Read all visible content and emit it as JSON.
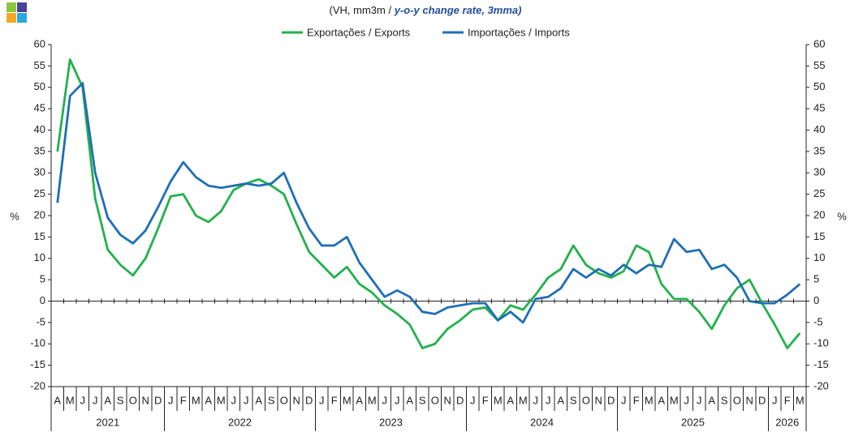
{
  "chart_data": {
    "type": "line",
    "title": "(VH, mm3m  /",
    "subtitle": "y-o-y change rate, 3mma)",
    "ylabel": "%",
    "y2label": "%",
    "legend": "top",
    "categories": [
      "A",
      "M",
      "J",
      "J",
      "A",
      "S",
      "O",
      "N",
      "D",
      "J",
      "F",
      "M",
      "A",
      "M",
      "J",
      "J",
      "A",
      "S",
      "O",
      "N",
      "D",
      "J",
      "F",
      "M",
      "A",
      "M",
      "J",
      "J",
      "A",
      "S",
      "O",
      "N",
      "D",
      "J",
      "F",
      "M",
      "A",
      "M",
      "J",
      "J",
      "A",
      "S",
      "O",
      "N",
      "D",
      "J",
      "F",
      "M",
      "A",
      "M",
      "J",
      "J",
      "A",
      "S",
      "O",
      "N",
      "D",
      "J",
      "F",
      "M"
    ],
    "years": [
      "2021",
      "2022",
      "2023",
      "2024",
      "2025",
      "2026"
    ],
    "series": [
      {
        "name": "Exportações / Exports",
        "color": "#22b14c",
        "values": [
          35,
          56.5,
          50,
          24,
          12,
          8.5,
          6,
          10,
          17,
          24.5,
          25,
          20,
          18.5,
          21,
          26,
          27.5,
          28.5,
          27,
          25,
          18,
          11.5,
          8.5,
          5.5,
          8,
          4,
          2,
          -1,
          -3,
          -5.5,
          -11,
          -10,
          -6.5,
          -4.5,
          -2,
          -1.5,
          -4.5,
          -1,
          -2,
          1.5,
          5.5,
          7.5,
          13,
          8.5,
          6.5,
          5.5,
          7,
          13,
          11.5,
          4,
          0.5,
          0.5,
          -2.5,
          -6.5,
          -1,
          3,
          5,
          -0.5,
          -5.5,
          -11,
          -7.5
        ]
      },
      {
        "name": "Importações / Imports",
        "color": "#1f6fb5",
        "values": [
          23,
          48,
          51,
          30,
          19.5,
          15.5,
          13.5,
          16.5,
          22,
          28,
          32.5,
          29,
          27,
          26.5,
          27,
          27.5,
          27,
          27.5,
          30,
          23,
          17,
          13,
          13,
          15,
          9,
          5,
          1,
          2.5,
          1,
          -2.5,
          -3,
          -1.5,
          -1,
          -0.5,
          -0.5,
          -4.5,
          -2.5,
          -5,
          0.5,
          1,
          3,
          7.5,
          5.5,
          7.5,
          6,
          8.5,
          6.5,
          8.5,
          8,
          14.5,
          11.5,
          12,
          7.5,
          8.5,
          5.5,
          0,
          -0.5,
          -0.5,
          1.5,
          4
        ]
      }
    ],
    "ylim": [
      -20,
      60
    ],
    "yticks": [
      -20,
      -15,
      -10,
      -5,
      0,
      5,
      10,
      15,
      20,
      25,
      30,
      35,
      40,
      45,
      50,
      55,
      60
    ],
    "y2lim": [
      -20,
      60
    ],
    "y2ticks": [
      -20,
      -15,
      -10,
      -5,
      0,
      5,
      10,
      15,
      20,
      25,
      30,
      35,
      40,
      45,
      50,
      55,
      60
    ]
  }
}
